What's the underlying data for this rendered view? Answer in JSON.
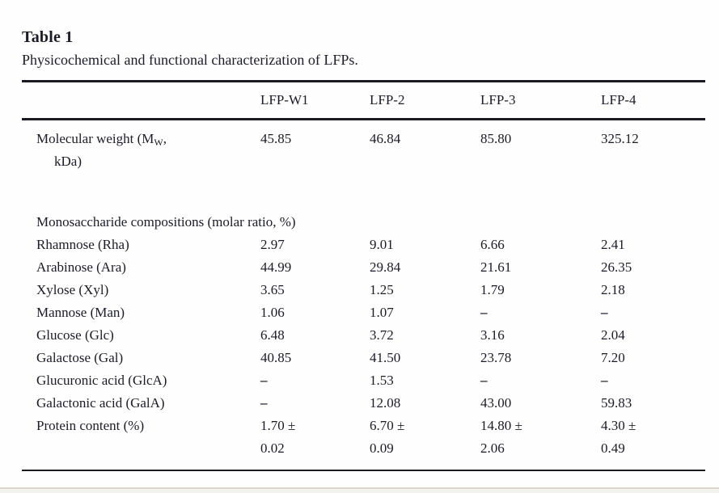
{
  "page": {
    "title": "Table 1",
    "caption": "Physicochemical and functional characterization of LFPs."
  },
  "table": {
    "columns": [
      "",
      "LFP-W1",
      "LFP-2",
      "LFP-3",
      "LFP-4"
    ],
    "molecular_weight": {
      "label_pre": "Molecular weight (M",
      "label_sub": "W",
      "label_post": ",",
      "label_line2": "kDa)",
      "values": [
        "45.85",
        "46.84",
        "85.80",
        "325.12"
      ]
    },
    "section_header": "Monosaccharide compositions (molar ratio, %)",
    "rows": [
      {
        "label": "Rhamnose (Rha)",
        "values": [
          "2.97",
          "9.01",
          "6.66",
          "2.41"
        ]
      },
      {
        "label": "Arabinose (Ara)",
        "values": [
          "44.99",
          "29.84",
          "21.61",
          "26.35"
        ]
      },
      {
        "label": "Xylose (Xyl)",
        "values": [
          "3.65",
          "1.25",
          "1.79",
          "2.18"
        ]
      },
      {
        "label": "Mannose (Man)",
        "values": [
          "1.06",
          "1.07",
          "–",
          "–"
        ]
      },
      {
        "label": "Glucose (Glc)",
        "values": [
          "6.48",
          "3.72",
          "3.16",
          "2.04"
        ]
      },
      {
        "label": "Galactose (Gal)",
        "values": [
          "40.85",
          "41.50",
          "23.78",
          "7.20"
        ]
      },
      {
        "label": "Glucuronic acid (GlcA)",
        "values": [
          "–",
          "1.53",
          "–",
          "–"
        ]
      },
      {
        "label": "Galactonic acid (GalA)",
        "values": [
          "–",
          "12.08",
          "43.00",
          "59.83"
        ]
      },
      {
        "label": "Protein content (%)",
        "values": [
          "1.70 ±\n0.02",
          "6.70 ±\n0.09",
          "14.80 ±\n2.06",
          "4.30 ±\n0.49"
        ]
      }
    ]
  }
}
